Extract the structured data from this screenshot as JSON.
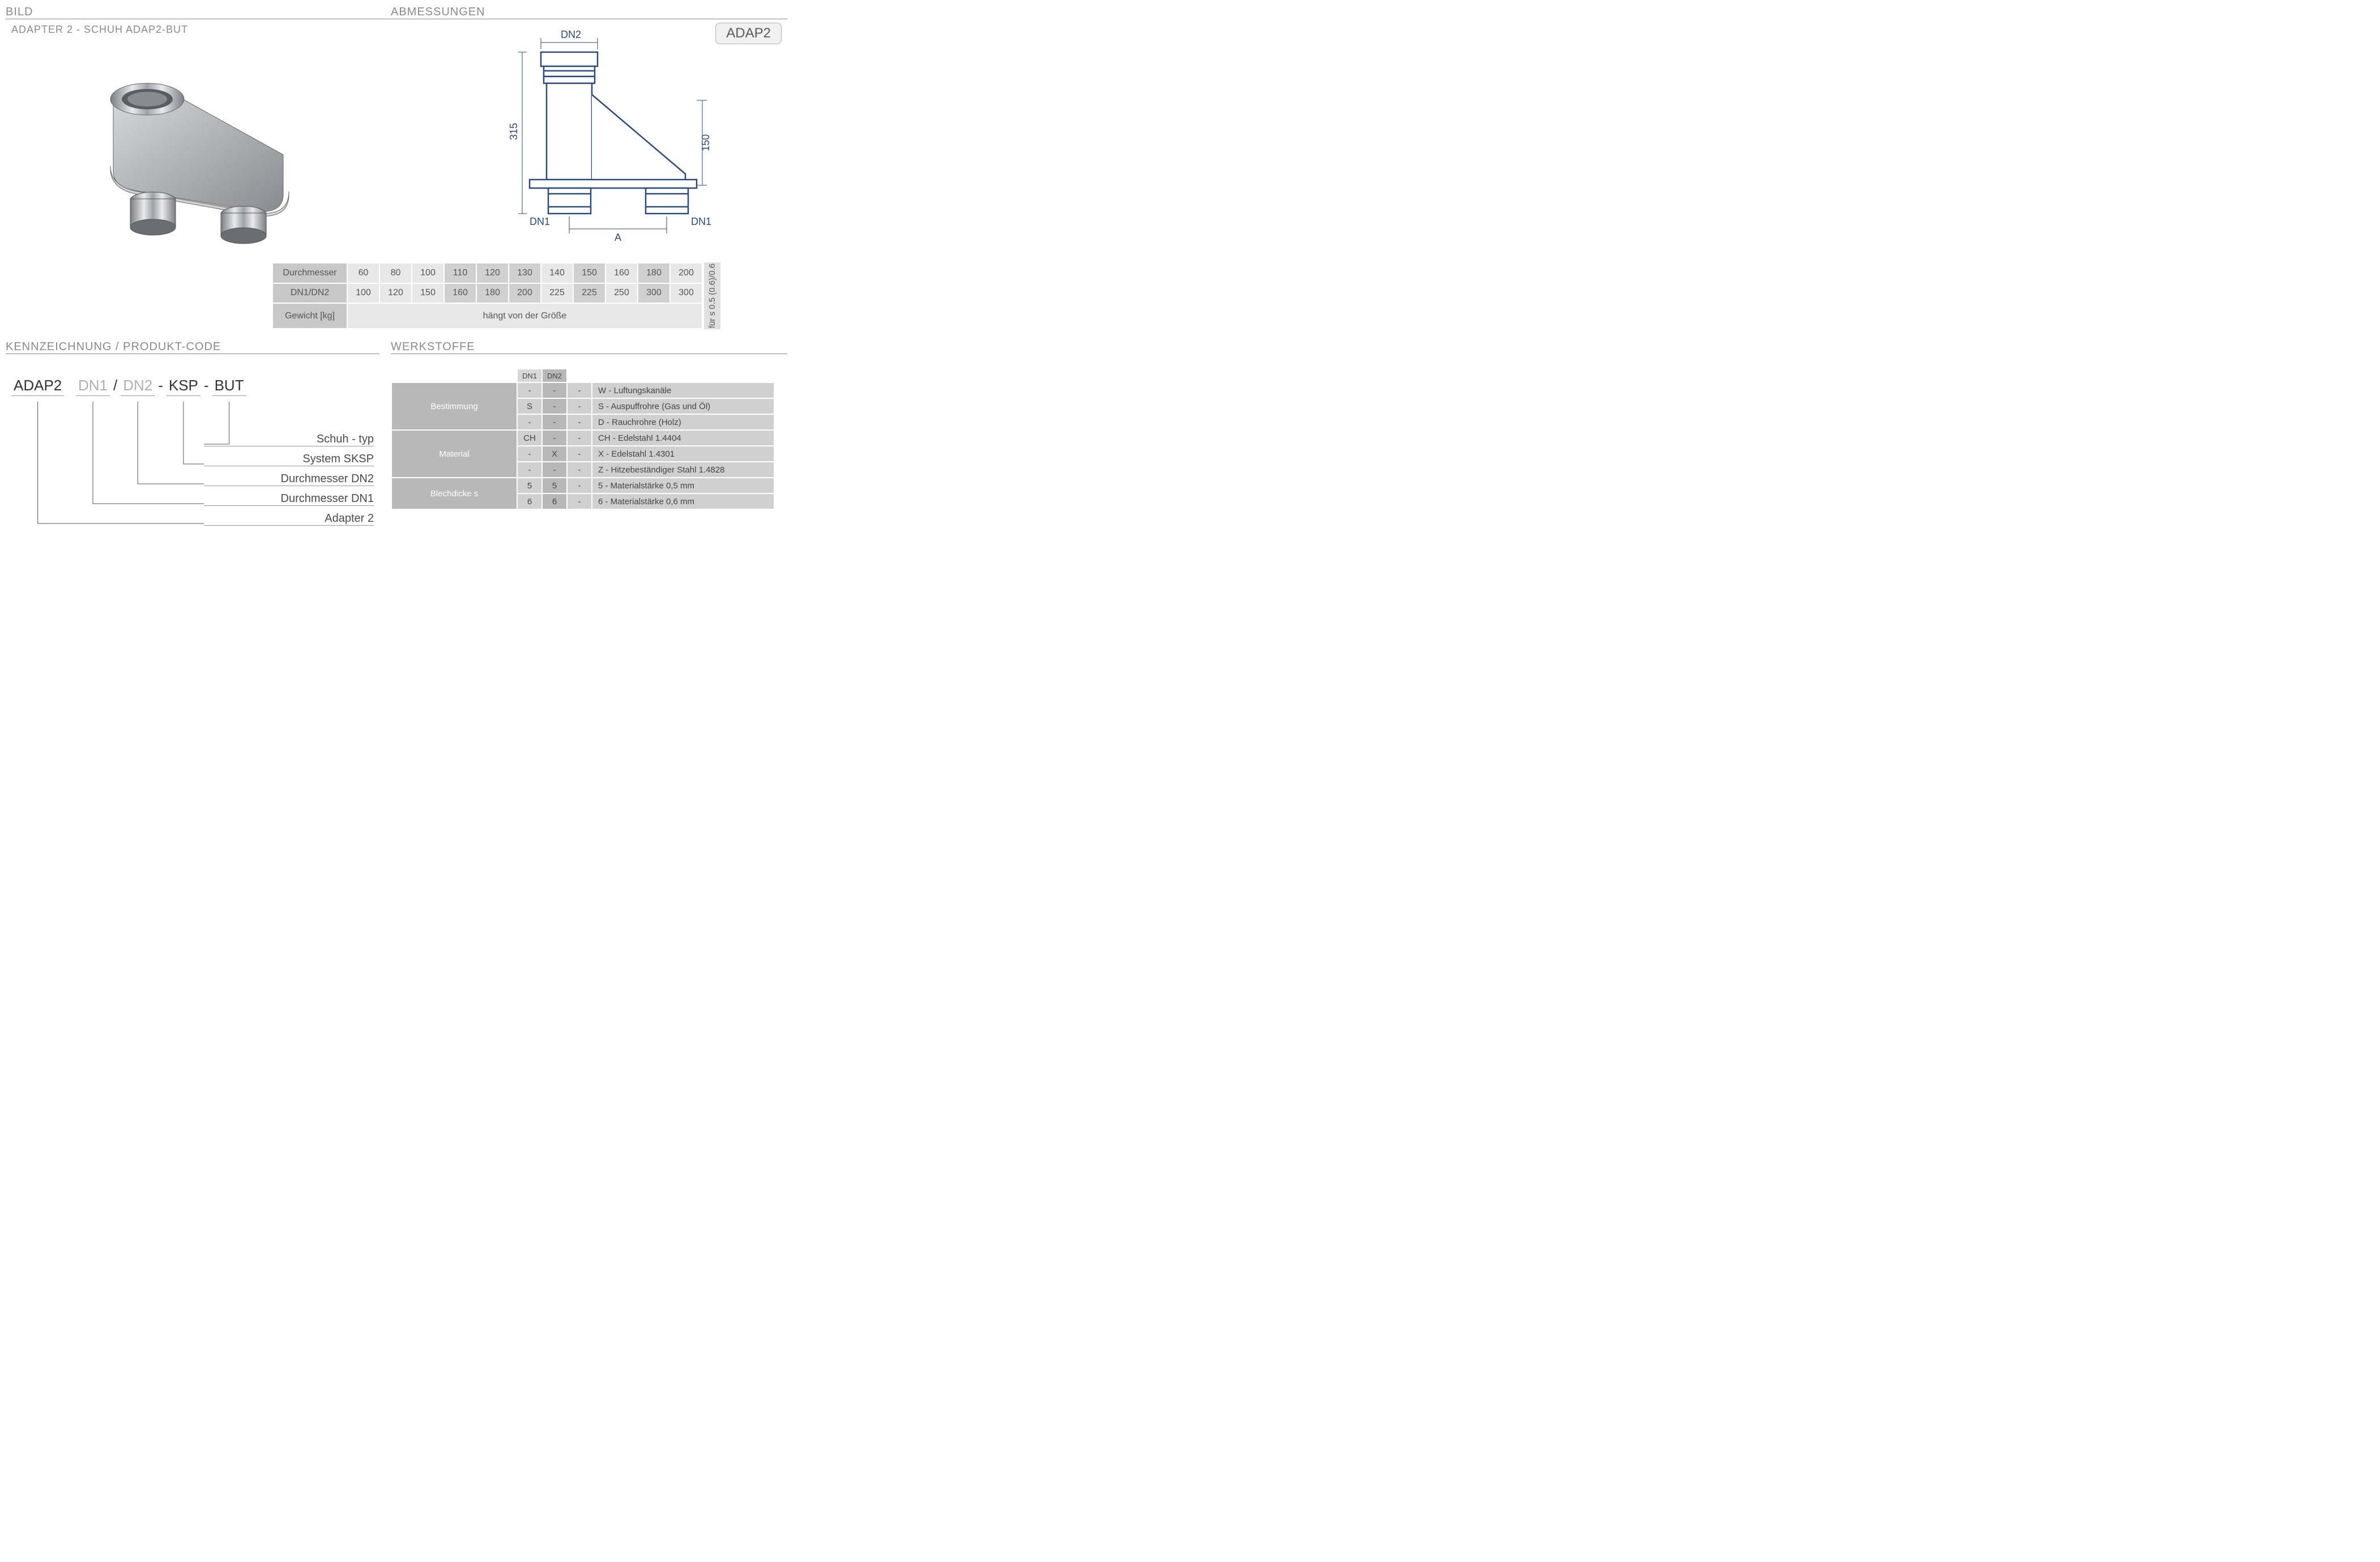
{
  "headers": {
    "bild": "BILD",
    "abmessungen": "ABMESSUNGEN",
    "kennzeichnung": "KENNZEICHNUNG  / PRODUKT-CODE",
    "werkstoffe": "WERKSTOFFE"
  },
  "subtitle": "ADAPTER 2 - SCHUH  ADAP2-BUT",
  "badge": "ADAP2",
  "drawing_labels": {
    "dn2": "DN2",
    "dn1_left": "DN1",
    "dn1_right": "DN1",
    "a": "A",
    "h315": "315",
    "h150": "150"
  },
  "dim_table": {
    "row1_hdr": "Durchmesser",
    "row2_hdr": "DN1/DN2",
    "row3_hdr": "Gewicht [kg]",
    "row1": [
      "60",
      "80",
      "100",
      "110",
      "120",
      "130",
      "140",
      "150",
      "160",
      "180",
      "200"
    ],
    "row1_dark": [
      false,
      false,
      false,
      true,
      true,
      true,
      false,
      true,
      false,
      true,
      false
    ],
    "row2": [
      "100",
      "120",
      "150",
      "160",
      "180",
      "200",
      "225",
      "225",
      "250",
      "300",
      "300"
    ],
    "row3_merged": "hängt von der Größe",
    "side_note": "für s 0.5 (0.6)/0.6"
  },
  "code": {
    "p1": "ADAP2",
    "p2": "DN1",
    "p3": "DN2",
    "p4": "KSP",
    "p5": "BUT",
    "sep_slash": "/",
    "sep_dash": "-",
    "labels": [
      "Schuh - typ",
      "System SKSP",
      "Durchmesser DN2",
      "Durchmesser DN1",
      "Adapter 2"
    ]
  },
  "materials": {
    "col_dn1": "DN1",
    "col_dn2": "DN2",
    "groups": [
      {
        "hdr": "Bestimmung",
        "rows": [
          {
            "c": [
              "-",
              "-",
              "-"
            ],
            "d": "W - Luftungskanäle"
          },
          {
            "c": [
              "S",
              "-",
              "-"
            ],
            "d": "S  - Auspuffrohre (Gas und Öl)"
          },
          {
            "c": [
              "-",
              "-",
              "-"
            ],
            "d": "D  - Rauchrohre (Holz)"
          }
        ]
      },
      {
        "hdr": "Material",
        "rows": [
          {
            "c": [
              "CH",
              "-",
              "-"
            ],
            "d": "CH - Edelstahl  1.4404"
          },
          {
            "c": [
              "-",
              "X",
              "-"
            ],
            "d": "X   - Edelstahl  1.4301"
          },
          {
            "c": [
              "-",
              "-",
              "-"
            ],
            "d": "Z   - Hitzebeständiger Stahl 1.4828"
          }
        ]
      },
      {
        "hdr": "Blechdicke s",
        "rows": [
          {
            "c": [
              "5",
              "5",
              "-"
            ],
            "d": "5 - Materialstärke 0,5 mm"
          },
          {
            "c": [
              "6",
              "6",
              "-"
            ],
            "d": "6 - Materialstärke 0,6 mm"
          }
        ]
      }
    ]
  },
  "colors": {
    "line": "#2a4a7a",
    "metal": "#b8bcc0"
  }
}
